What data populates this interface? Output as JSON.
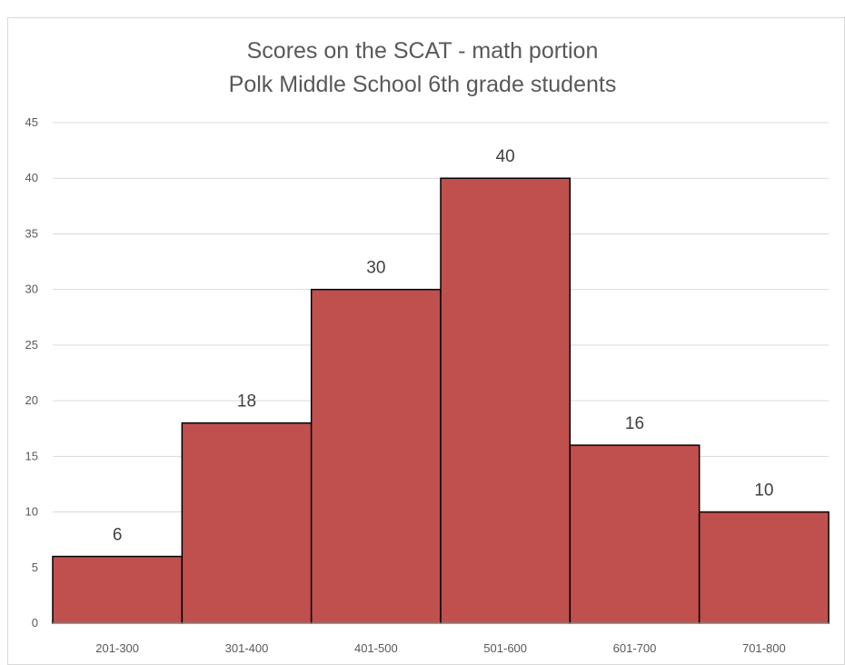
{
  "chart_data": {
    "type": "bar",
    "title": "Scores on the SCAT - math portion",
    "subtitle": "Polk Middle School 6th grade students",
    "categories": [
      "201-300",
      "301-400",
      "401-500",
      "501-600",
      "601-700",
      "701-800"
    ],
    "values": [
      6,
      18,
      30,
      40,
      16,
      10
    ],
    "ylim": [
      0,
      45
    ],
    "yticks": [
      0,
      5,
      10,
      15,
      20,
      25,
      30,
      35,
      40,
      45
    ],
    "grid": true,
    "data_labels": true,
    "bar_color": "#c0504d",
    "bar_edge_color": "#000000"
  }
}
